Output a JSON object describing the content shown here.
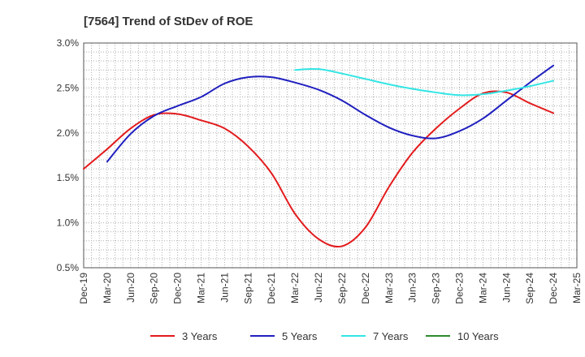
{
  "chart_data": {
    "type": "line",
    "title": "[7564]  Trend of StDev of ROE",
    "xlabel": "",
    "ylabel": "",
    "ylim": [
      0.5,
      3.0
    ],
    "grid": true,
    "legend_position": "bottom",
    "x_ticks": [
      "Dec-19",
      "Mar-20",
      "Jun-20",
      "Sep-20",
      "Dec-20",
      "Mar-21",
      "Jun-21",
      "Sep-21",
      "Dec-21",
      "Mar-22",
      "Jun-22",
      "Sep-22",
      "Dec-22",
      "Mar-23",
      "Jun-23",
      "Sep-23",
      "Dec-23",
      "Mar-24",
      "Jun-24",
      "Sep-24",
      "Dec-24",
      "Mar-25"
    ],
    "y_ticks": [
      "0.5%",
      "1.0%",
      "1.5%",
      "2.0%",
      "2.5%",
      "3.0%"
    ],
    "y_tick_values": [
      0.5,
      1.0,
      1.5,
      2.0,
      2.5,
      3.0
    ],
    "series": [
      {
        "name": "3 Years",
        "color": "#e31a1c",
        "values": [
          1.6,
          1.82,
          2.05,
          2.2,
          2.21,
          2.14,
          2.05,
          1.85,
          1.55,
          1.1,
          0.82,
          0.74,
          0.95,
          1.4,
          1.78,
          2.05,
          2.27,
          2.44,
          2.45,
          2.33,
          2.22,
          null
        ]
      },
      {
        "name": "5 Years",
        "color": "#1f1fbf",
        "values": [
          null,
          1.68,
          1.99,
          2.19,
          2.3,
          2.4,
          2.55,
          2.62,
          2.62,
          2.56,
          2.48,
          2.36,
          2.2,
          2.06,
          1.97,
          1.94,
          2.02,
          2.16,
          2.36,
          2.56,
          2.75,
          null
        ]
      },
      {
        "name": "7 Years",
        "color": "#33e5e5",
        "values": [
          null,
          null,
          null,
          null,
          null,
          null,
          null,
          null,
          null,
          2.7,
          2.71,
          2.66,
          2.6,
          2.54,
          2.49,
          2.45,
          2.42,
          2.43,
          2.47,
          2.52,
          2.58,
          null
        ]
      },
      {
        "name": "10 Years",
        "color": "#2e8b2e",
        "values": [
          null,
          null,
          null,
          null,
          null,
          null,
          null,
          null,
          null,
          null,
          null,
          null,
          null,
          null,
          null,
          null,
          null,
          null,
          null,
          null,
          null,
          null
        ]
      }
    ]
  }
}
